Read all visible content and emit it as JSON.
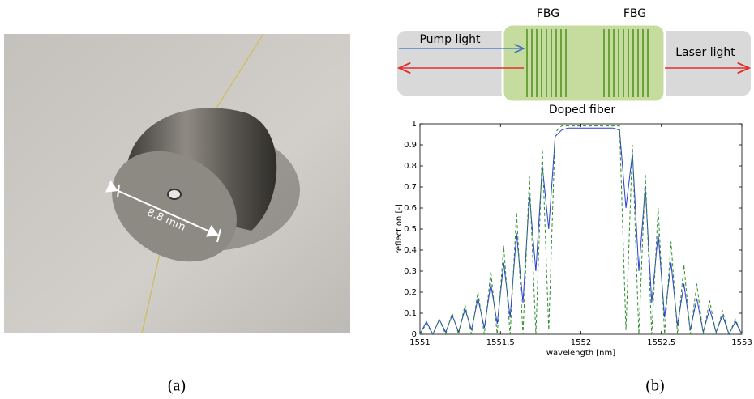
{
  "photo": {
    "annotation": "8.8 mm",
    "caption": "(a)"
  },
  "diagram": {
    "fbg_left": "FBG",
    "fbg_right": "FBG",
    "pump": "Pump light",
    "laser": "Laser light",
    "fiber": "Doped fiber"
  },
  "chart_data": {
    "type": "line",
    "caption": "(b)",
    "xlabel": "wavelength [nm]",
    "ylabel": "reflection [-]",
    "xlim": [
      1551,
      1553
    ],
    "xticks": [
      1551,
      1551.5,
      1552,
      1552.5,
      1553
    ],
    "ylim": [
      0,
      1
    ],
    "yticks": [
      0,
      0.1,
      0.2,
      0.3,
      0.4,
      0.5,
      0.6,
      0.7,
      0.8,
      0.9,
      1
    ],
    "x": [
      1551,
      1551.04,
      1551.08,
      1551.12,
      1551.16,
      1551.2,
      1551.24,
      1551.28,
      1551.32,
      1551.36,
      1551.4,
      1551.44,
      1551.48,
      1551.52,
      1551.56,
      1551.6,
      1551.64,
      1551.68,
      1551.72,
      1551.76,
      1551.8,
      1551.84,
      1551.88,
      1551.92,
      1551.96,
      1552,
      1552.04,
      1552.08,
      1552.12,
      1552.16,
      1552.2,
      1552.24,
      1552.28,
      1552.32,
      1552.36,
      1552.4,
      1552.44,
      1552.48,
      1552.52,
      1552.56,
      1552.6,
      1552.64,
      1552.68,
      1552.72,
      1552.76,
      1552.8,
      1552.84,
      1552.88,
      1552.92,
      1552.96,
      1553
    ],
    "series": [
      {
        "color": "#2a3fd0",
        "style": "solid",
        "values": [
          0,
          0.06,
          0,
          0.07,
          0.01,
          0.09,
          0.01,
          0.12,
          0.02,
          0.17,
          0.03,
          0.24,
          0.05,
          0.34,
          0.08,
          0.48,
          0.15,
          0.66,
          0.3,
          0.8,
          0.5,
          0.94,
          0.97,
          0.98,
          0.98,
          0.98,
          0.98,
          0.98,
          0.98,
          0.98,
          0.98,
          0.97,
          0.6,
          0.86,
          0.3,
          0.7,
          0.15,
          0.48,
          0.08,
          0.34,
          0.04,
          0.24,
          0.02,
          0.17,
          0.01,
          0.12,
          0.01,
          0.09,
          0,
          0.06,
          0
        ]
      },
      {
        "color": "#2e8b2e",
        "style": "dashed",
        "values": [
          0,
          0.05,
          0,
          0.07,
          0,
          0.1,
          0,
          0.14,
          0,
          0.2,
          0,
          0.3,
          0,
          0.42,
          0,
          0.58,
          0,
          0.75,
          0,
          0.88,
          0.02,
          0.96,
          0.99,
          0.99,
          0.99,
          0.99,
          0.99,
          0.99,
          0.99,
          0.99,
          0.99,
          0.99,
          0.02,
          0.9,
          0,
          0.76,
          0,
          0.6,
          0,
          0.44,
          0,
          0.33,
          0,
          0.24,
          0,
          0.16,
          0,
          0.11,
          0,
          0.07,
          0
        ]
      }
    ]
  }
}
